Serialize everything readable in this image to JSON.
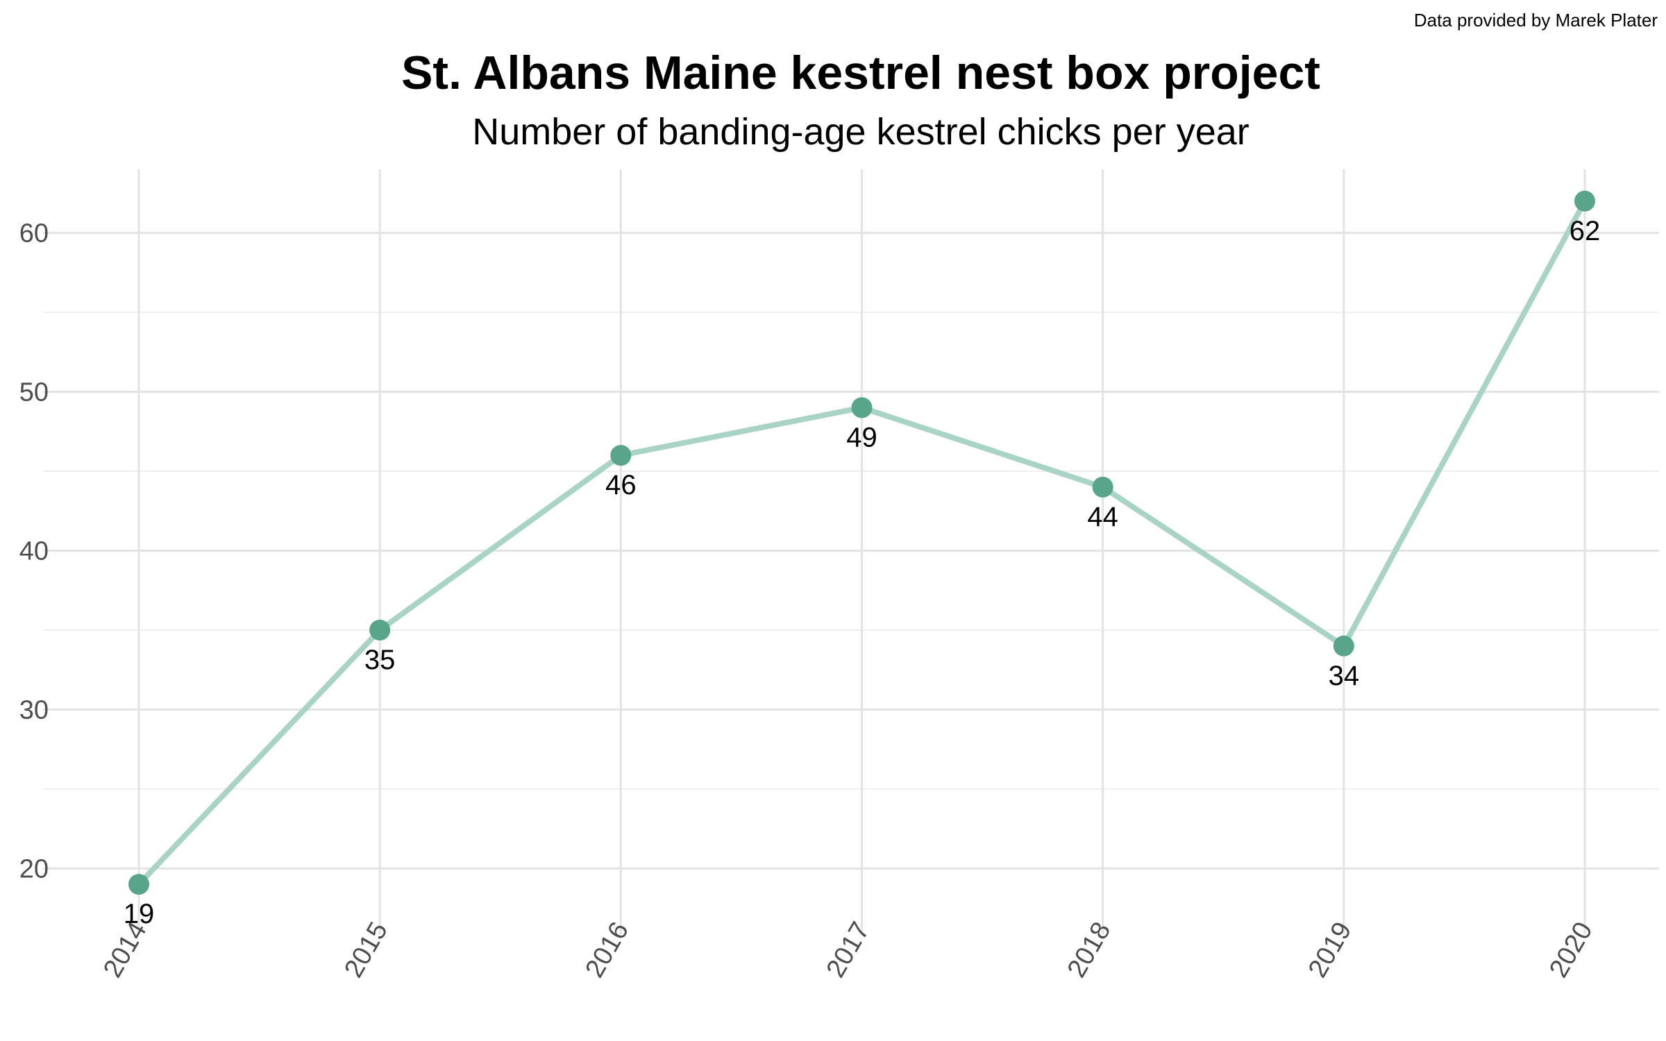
{
  "chart_data": {
    "type": "line",
    "title": "St. Albans Maine kestrel nest box project",
    "subtitle": "Number of banding-age kestrel chicks per year",
    "caption": "Data provided by Marek Plater",
    "x": [
      "2014",
      "2015",
      "2016",
      "2017",
      "2018",
      "2019",
      "2020"
    ],
    "values": [
      19,
      35,
      46,
      49,
      44,
      34,
      62
    ],
    "data_labels": [
      "19",
      "35",
      "46",
      "49",
      "44",
      "34",
      "62"
    ],
    "yticks": [
      "20",
      "30",
      "40",
      "50",
      "60"
    ],
    "ylim": [
      17,
      64
    ],
    "grid": true,
    "legend": "none",
    "colors": {
      "line": "#a9d3c6",
      "point": "#59a58a",
      "grid": "#e3e3e3"
    }
  }
}
